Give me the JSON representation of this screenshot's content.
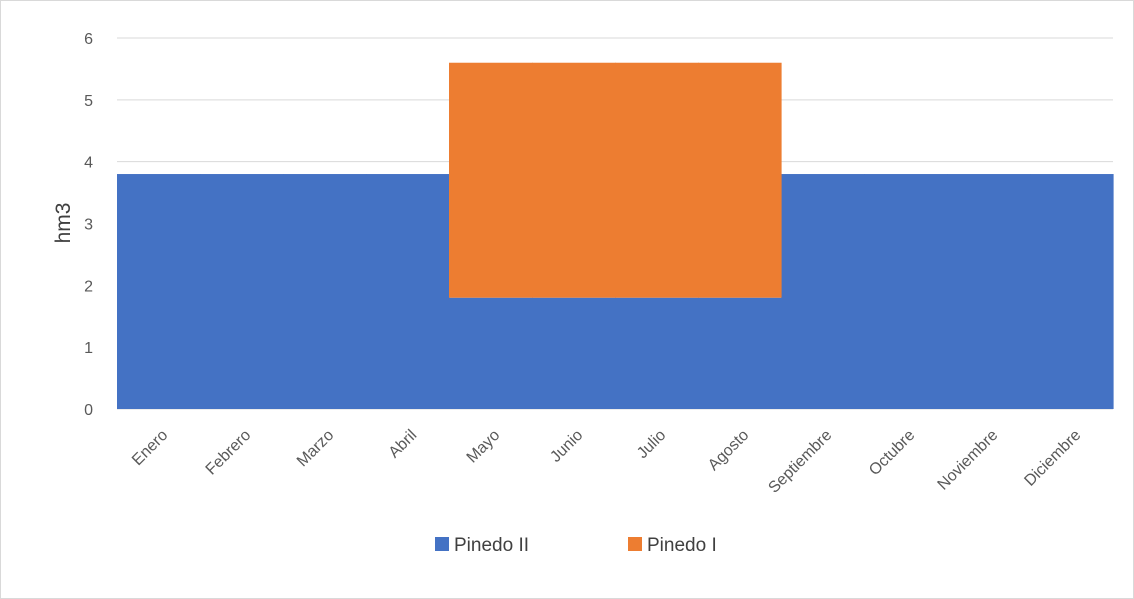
{
  "chart_data": {
    "type": "area",
    "stacked": true,
    "categories": [
      "Enero",
      "Febrero",
      "Marzo",
      "Abril",
      "Mayo",
      "Junio",
      "Julio",
      "Agosto",
      "Septiembre",
      "Octubre",
      "Noviembre",
      "Diciembre"
    ],
    "series": [
      {
        "name": "Pinedo II",
        "color": "#4472C4",
        "values": [
          3.8,
          3.8,
          3.8,
          3.8,
          1.8,
          1.8,
          1.8,
          1.8,
          3.8,
          3.8,
          3.8,
          3.8
        ]
      },
      {
        "name": "Pinedo I",
        "color": "#ED7D31",
        "values": [
          0,
          0,
          0,
          0,
          3.8,
          3.8,
          3.8,
          3.8,
          0,
          0,
          0,
          0
        ]
      }
    ],
    "title": "",
    "xlabel": "",
    "ylabel": "hm3",
    "ylim": [
      0,
      6
    ],
    "yticks": [
      "0",
      "1",
      "2",
      "3",
      "4",
      "5",
      "6"
    ],
    "grid": true,
    "legend": "bottom"
  }
}
